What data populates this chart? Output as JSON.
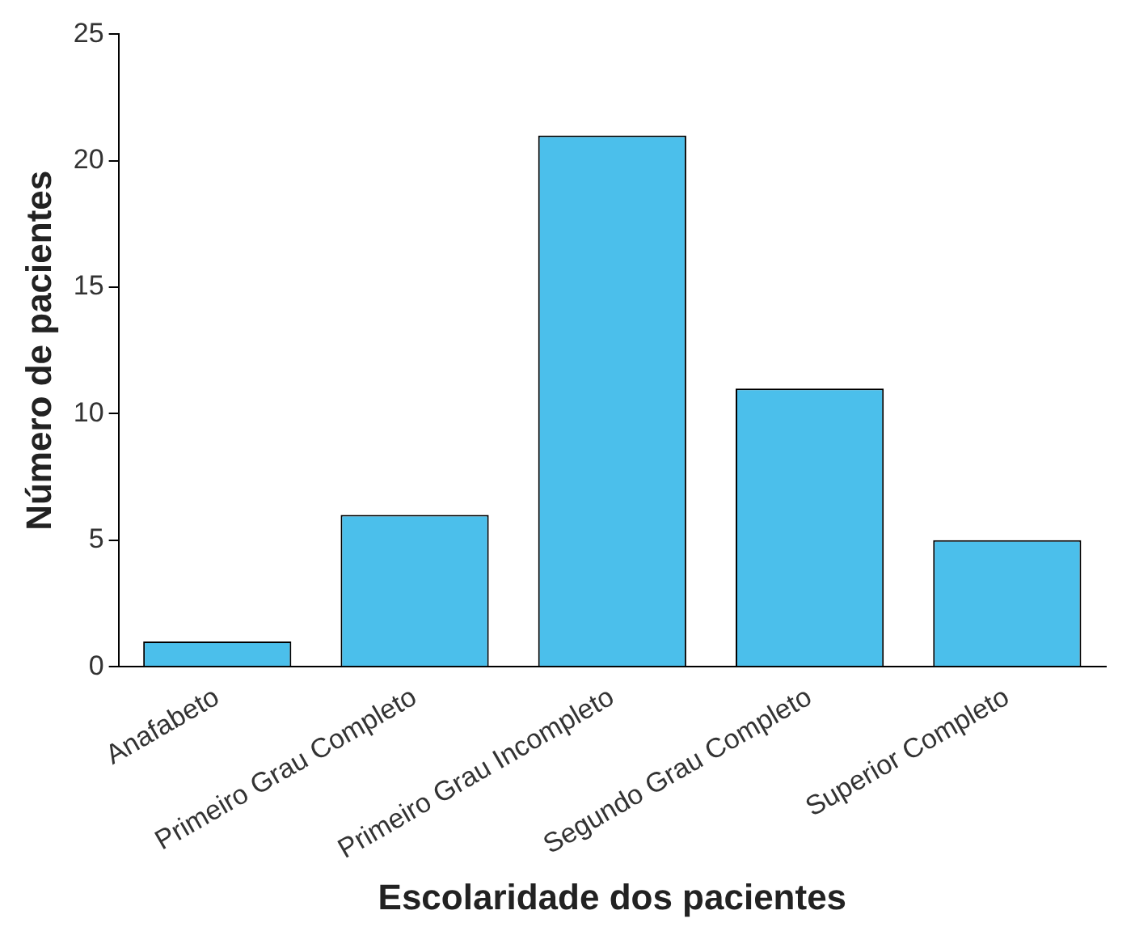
{
  "chart_data": {
    "type": "bar",
    "xlabel": "Escolaridade dos pacientes",
    "ylabel": "Número de pacientes",
    "categories": [
      "Anafabeto",
      "Primeiro Grau Completo",
      "Primeiro Grau Incompleto",
      "Segundo Grau Completo",
      "Superior Completo"
    ],
    "values": [
      1,
      6,
      21,
      11,
      5
    ],
    "color": "#4bbfeb",
    "ylim": [
      0,
      25
    ],
    "yticks": [
      0,
      5,
      10,
      15,
      20,
      25
    ],
    "grid": false,
    "legend": false
  }
}
